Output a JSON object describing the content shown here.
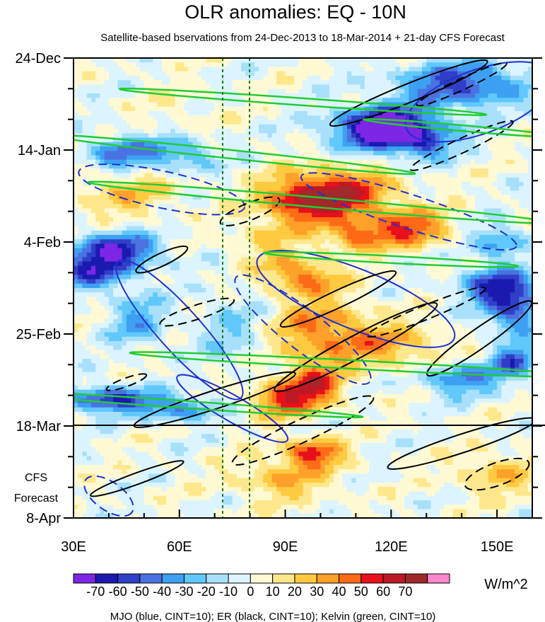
{
  "chart_data": {
    "type": "heatmap",
    "title": "OLR anomalies: EQ - 10N",
    "subtitle": "Satellite-based bservations from 24-Dec-2013 to 18-Mar-2014 + 21-day CFS Forecast",
    "x_ticks": [
      {
        "value": 30,
        "label": "30E"
      },
      {
        "value": 60,
        "label": "60E"
      },
      {
        "value": 90,
        "label": "90E"
      },
      {
        "value": 120,
        "label": "120E"
      },
      {
        "value": 150,
        "label": "150E"
      }
    ],
    "xlim": [
      30,
      160
    ],
    "y_ticks": [
      {
        "value": 0,
        "label": "24-Dec"
      },
      {
        "value": 21,
        "label": "14-Jan"
      },
      {
        "value": 42,
        "label": "4-Feb"
      },
      {
        "value": 63,
        "label": "25-Feb"
      },
      {
        "value": 84,
        "label": "18-Mar"
      },
      {
        "value": 105,
        "label": "8-Apr"
      }
    ],
    "ylim_days_from_24_Dec": [
      0,
      105
    ],
    "y_axis_reversed": true,
    "forecast_start": "18-Mar",
    "forecast_label": [
      "CFS",
      "Forecast"
    ],
    "reference_lines_lon": [
      72.5,
      80
    ],
    "colorbar": {
      "unit": "W/m^2",
      "levels": [
        -70,
        -60,
        -50,
        -40,
        -30,
        -20,
        -10,
        0,
        10,
        20,
        30,
        40,
        50,
        60,
        70
      ],
      "level_labels": [
        "-70",
        "-60",
        "-50",
        "-40",
        "-30",
        "-20",
        "-10",
        "0",
        "10",
        "20",
        "30",
        "40",
        "50",
        "60",
        "70"
      ],
      "colors": [
        "#7e26e6",
        "#1a1ab0",
        "#2f3fc8",
        "#4a72e0",
        "#3da0f2",
        "#60c8fb",
        "#a8e0fb",
        "#dcf4ff",
        "#fffad4",
        "#ffe78c",
        "#ffca40",
        "#ffa02a",
        "#ff6a17",
        "#e8101a",
        "#bb1a25",
        "#a02a2a",
        "#ff88cc"
      ]
    },
    "footer": "MJO (blue, CINT=10); ER (black, CINT=10); Kelvin (green, CINT=10)",
    "contour_colors": {
      "mjo": "#1f2fd6",
      "er": "#000000",
      "kelvin": "#22cc33",
      "ref_line": "#1a7a1a"
    }
  }
}
